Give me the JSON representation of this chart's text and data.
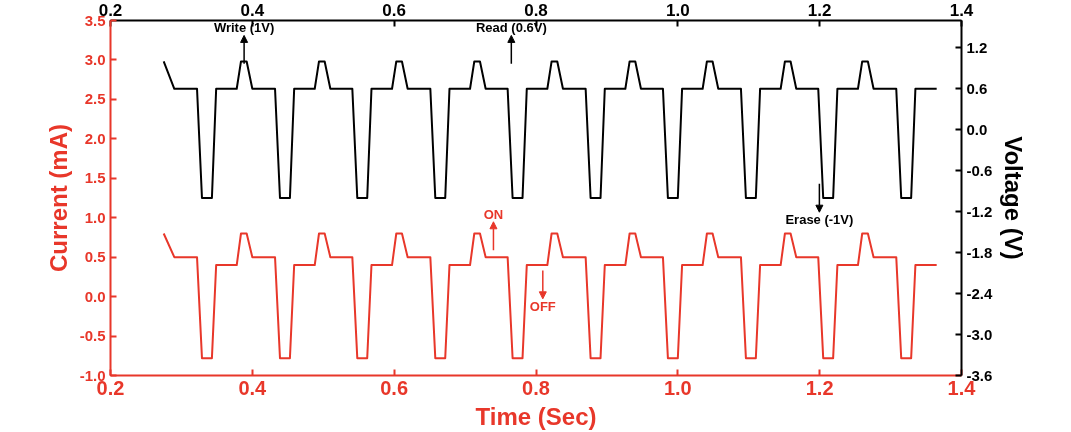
{
  "chart_data": {
    "type": "line",
    "xlabel": "Time (Sec)",
    "ylabel": "Current (mA)",
    "y2label": "Voltage (V)",
    "x": [
      0.275,
      0.29,
      0.322,
      0.329,
      0.343,
      0.349,
      0.378,
      0.384,
      0.392,
      0.4,
      0.432,
      0.439,
      0.453,
      0.459,
      0.488,
      0.494,
      0.502,
      0.51,
      0.541,
      0.548,
      0.562,
      0.568,
      0.597,
      0.603,
      0.611,
      0.619,
      0.651,
      0.658,
      0.672,
      0.678,
      0.707,
      0.713,
      0.721,
      0.729,
      0.76,
      0.767,
      0.781,
      0.787,
      0.816,
      0.822,
      0.83,
      0.838,
      0.87,
      0.877,
      0.891,
      0.897,
      0.926,
      0.932,
      0.94,
      0.948,
      0.979,
      0.986,
      1.0,
      1.006,
      1.035,
      1.041,
      1.049,
      1.057,
      1.089,
      1.096,
      1.11,
      1.116,
      1.145,
      1.151,
      1.159,
      1.167,
      1.198,
      1.205,
      1.219,
      1.225,
      1.254,
      1.26,
      1.268,
      1.276,
      1.308,
      1.315,
      1.329,
      1.335,
      1.365
    ],
    "series": [
      {
        "color": "#e8372a",
        "values": [
          0.8,
          0.5,
          0.5,
          -0.78,
          -0.78,
          0.4,
          0.4,
          0.8,
          0.8,
          0.5,
          0.5,
          -0.78,
          -0.78,
          0.4,
          0.4,
          0.8,
          0.8,
          0.5,
          0.5,
          -0.78,
          -0.78,
          0.4,
          0.4,
          0.8,
          0.8,
          0.5,
          0.5,
          -0.78,
          -0.78,
          0.4,
          0.4,
          0.8,
          0.8,
          0.5,
          0.5,
          -0.78,
          -0.78,
          0.4,
          0.4,
          0.8,
          0.8,
          0.5,
          0.5,
          -0.78,
          -0.78,
          0.4,
          0.4,
          0.8,
          0.8,
          0.5,
          0.5,
          -0.78,
          -0.78,
          0.4,
          0.4,
          0.8,
          0.8,
          0.5,
          0.5,
          -0.78,
          -0.78,
          0.4,
          0.4,
          0.8,
          0.8,
          0.5,
          0.5,
          -0.78,
          -0.78,
          0.4,
          0.4,
          0.8,
          0.8,
          0.5,
          0.5,
          -0.78,
          -0.78,
          0.4,
          0.4
        ]
      },
      {
        "color": "#000000",
        "axis": "y2",
        "values": [
          1.0,
          0.6,
          0.6,
          -1.0,
          -1.0,
          0.6,
          0.6,
          1.0,
          1.0,
          0.6,
          0.6,
          -1.0,
          -1.0,
          0.6,
          0.6,
          1.0,
          1.0,
          0.6,
          0.6,
          -1.0,
          -1.0,
          0.6,
          0.6,
          1.0,
          1.0,
          0.6,
          0.6,
          -1.0,
          -1.0,
          0.6,
          0.6,
          1.0,
          1.0,
          0.6,
          0.6,
          -1.0,
          -1.0,
          0.6,
          0.6,
          1.0,
          1.0,
          0.6,
          0.6,
          -1.0,
          -1.0,
          0.6,
          0.6,
          1.0,
          1.0,
          0.6,
          0.6,
          -1.0,
          -1.0,
          0.6,
          0.6,
          1.0,
          1.0,
          0.6,
          0.6,
          -1.0,
          -1.0,
          0.6,
          0.6,
          1.0,
          1.0,
          0.6,
          0.6,
          -1.0,
          -1.0,
          0.6,
          0.6,
          1.0,
          1.0,
          0.6,
          0.6,
          -1.0,
          -1.0,
          0.6,
          0.6
        ]
      }
    ],
    "xlim": [
      0.2,
      1.4
    ],
    "xticks": [
      {
        "value": 0.2,
        "label": "0.2"
      },
      {
        "value": 0.4,
        "label": "0.4"
      },
      {
        "value": 0.6,
        "label": "0.6"
      },
      {
        "value": 0.8,
        "label": "0.8"
      },
      {
        "value": 1.0,
        "label": "1.0"
      },
      {
        "value": 1.2,
        "label": "1.2"
      },
      {
        "value": 1.4,
        "label": "1.4"
      }
    ],
    "x2lim": [
      0.2,
      1.4
    ],
    "x2ticks": [
      {
        "value": 0.2,
        "label": "0.2"
      },
      {
        "value": 0.4,
        "label": "0.4"
      },
      {
        "value": 0.6,
        "label": "0.6"
      },
      {
        "value": 0.8,
        "label": "0.8"
      },
      {
        "value": 1.0,
        "label": "1.0"
      },
      {
        "value": 1.2,
        "label": "1.2"
      },
      {
        "value": 1.4,
        "label": "1.4"
      }
    ],
    "ylim": [
      -1.0,
      3.5
    ],
    "yticks": [
      {
        "value": -1.0,
        "label": "-1.0"
      },
      {
        "value": -0.5,
        "label": "-0.5"
      },
      {
        "value": 0,
        "label": "0.0"
      },
      {
        "value": 0.5,
        "label": "0.5"
      },
      {
        "value": 1.0,
        "label": "1.0"
      },
      {
        "value": 1.5,
        "label": "1.5"
      },
      {
        "value": 2.0,
        "label": "2.0"
      },
      {
        "value": 2.5,
        "label": "2.5"
      },
      {
        "value": 3.0,
        "label": "3.0"
      },
      {
        "value": 3.5,
        "label": "3.5"
      }
    ],
    "y2lim": [
      -3.6,
      1.6
    ],
    "y2ticks": [
      {
        "value": -3.6,
        "label": "-3.6"
      },
      {
        "value": -3.0,
        "label": "-3.0"
      },
      {
        "value": -2.4,
        "label": "-2.4"
      },
      {
        "value": -1.8,
        "label": "-1.8"
      },
      {
        "value": -1.2,
        "label": "-1.2"
      },
      {
        "value": -0.6,
        "label": "-0.6"
      },
      {
        "value": 0,
        "label": "0.0"
      },
      {
        "value": 0.6,
        "label": "0.6"
      },
      {
        "value": 1.2,
        "label": "1.2"
      }
    ],
    "grid": false,
    "annotations": [
      "Write (1V)",
      "Read (0.6V)",
      "Erase (-1V)",
      "ON",
      "OFF"
    ]
  }
}
